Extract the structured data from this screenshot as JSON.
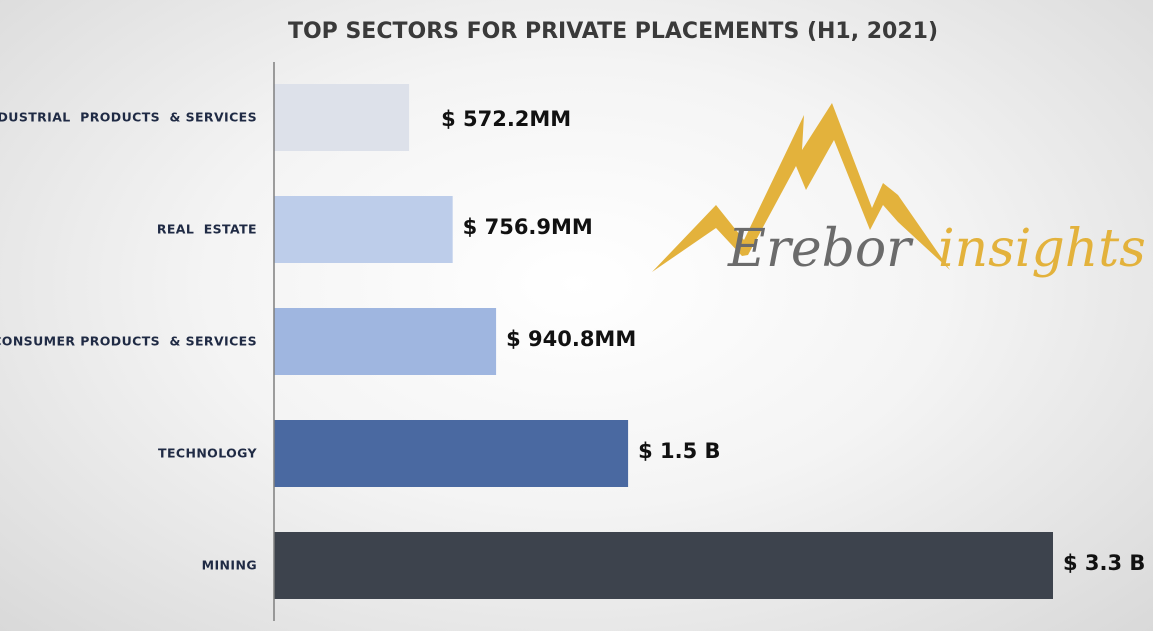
{
  "chart_data": {
    "type": "bar",
    "orientation": "horizontal",
    "title": "TOP SECTORS FOR PRIVATE PLACEMENTS (H1, 2021)",
    "xlabel": "",
    "ylabel": "",
    "categories": [
      "INDUSTRIAL  PRODUCTS  & SERVICES",
      "REAL  ESTATE",
      "CONSUMER PRODUCTS  & SERVICES",
      "TECHNOLOGY",
      "MINING"
    ],
    "values": [
      572.2,
      756.9,
      940.8,
      1500,
      3300
    ],
    "value_unit": "MM",
    "value_labels": [
      "$ 572.2MM",
      "$ 756.9MM",
      "$ 940.8MM",
      "$ 1.5 B",
      "$ 3.3 B"
    ],
    "colors": [
      "#dde1ea",
      "#bdcdea",
      "#9fb6e0",
      "#4a69a1",
      "#3d434d"
    ],
    "xlim": [
      0,
      3300
    ],
    "grid": false,
    "legend": "none"
  },
  "logo": {
    "word1": "Erebor",
    "word2": "insights",
    "mountain_color": "#e3b23c",
    "word1_color": "#6b6b6b",
    "word2_color": "#e3b23c"
  }
}
